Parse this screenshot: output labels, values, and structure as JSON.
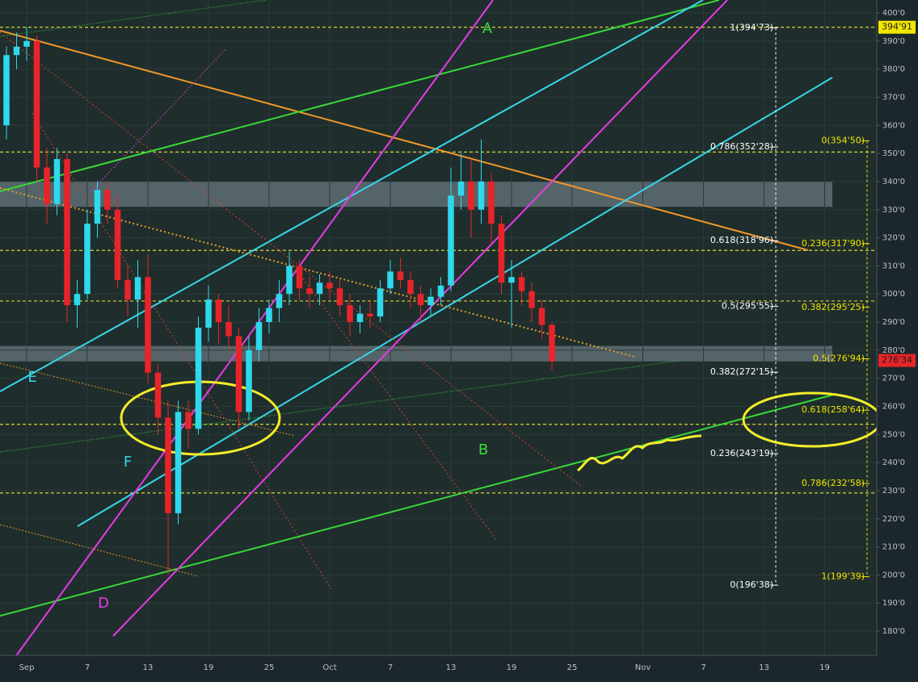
{
  "chart_data": {
    "type": "candlestick",
    "x": [
      -2,
      -1,
      0,
      1,
      2,
      3,
      4,
      5,
      6,
      7,
      8,
      9,
      10,
      11,
      12,
      13,
      14,
      15,
      16,
      17,
      18,
      19,
      20,
      21,
      22,
      23,
      24,
      25,
      26,
      27,
      28,
      29,
      30,
      31,
      32,
      33,
      34,
      35,
      36,
      37,
      38,
      39,
      40,
      41,
      42,
      43,
      44,
      45,
      46,
      47,
      48,
      49,
      50,
      51,
      52
    ],
    "open": [
      360,
      385,
      388,
      390,
      345,
      332,
      348,
      296,
      300,
      325,
      337,
      330,
      305,
      298,
      306,
      272,
      256,
      222,
      258,
      252,
      288,
      298,
      290,
      285,
      258,
      280,
      290,
      295,
      300,
      310,
      302,
      300,
      304,
      302,
      296,
      290,
      293,
      292,
      302,
      308,
      305,
      300,
      296,
      299,
      303,
      335,
      340,
      330,
      340,
      325,
      304,
      306,
      301,
      295,
      289
    ],
    "high": [
      388,
      393,
      395,
      392,
      352,
      352,
      350,
      305,
      330,
      340,
      340,
      335,
      310,
      312,
      314,
      275,
      262,
      262,
      262,
      292,
      303,
      300,
      296,
      288,
      285,
      295,
      298,
      305,
      315,
      312,
      306,
      307,
      308,
      305,
      300,
      296,
      298,
      305,
      312,
      313,
      308,
      303,
      302,
      306,
      345,
      350,
      348,
      355,
      343,
      328,
      312,
      308,
      304,
      298,
      290
    ],
    "low": [
      355,
      380,
      383,
      340,
      325,
      328,
      290,
      288,
      298,
      320,
      325,
      302,
      292,
      288,
      268,
      250,
      200,
      218,
      245,
      250,
      283,
      282,
      280,
      252,
      255,
      276,
      286,
      290,
      296,
      298,
      295,
      296,
      298,
      292,
      285,
      286,
      288,
      290,
      300,
      302,
      295,
      290,
      292,
      296,
      301,
      330,
      320,
      325,
      318,
      300,
      288,
      296,
      290,
      284,
      273
    ],
    "close": [
      385,
      388,
      390,
      345,
      332,
      348,
      296,
      300,
      325,
      337,
      330,
      305,
      298,
      306,
      272,
      256,
      222,
      258,
      252,
      288,
      298,
      290,
      285,
      258,
      280,
      290,
      295,
      300,
      310,
      302,
      300,
      304,
      302,
      296,
      290,
      293,
      292,
      302,
      308,
      305,
      300,
      296,
      299,
      303,
      335,
      340,
      330,
      340,
      325,
      304,
      306,
      301,
      295,
      289,
      276
    ],
    "up_color": "#2fd8ec",
    "down_color": "#e8242a",
    "xlim": [
      -2.64,
      84.16
    ],
    "ylim": [
      171.4,
      404.6
    ],
    "xticks": [
      {
        "value": 0,
        "label": "Sep"
      },
      {
        "value": 6,
        "label": "7"
      },
      {
        "value": 12,
        "label": "13"
      },
      {
        "value": 18,
        "label": "19"
      },
      {
        "value": 24,
        "label": "25"
      },
      {
        "value": 30,
        "label": "Oct"
      },
      {
        "value": 36,
        "label": "7"
      },
      {
        "value": 42,
        "label": "13"
      },
      {
        "value": 48,
        "label": "19"
      },
      {
        "value": 54,
        "label": "25"
      },
      {
        "value": 61,
        "label": "Nov"
      },
      {
        "value": 67,
        "label": "7"
      },
      {
        "value": 73,
        "label": "13"
      },
      {
        "value": 79,
        "label": "19"
      }
    ],
    "yticks": [
      {
        "value": 180,
        "label": "180'0"
      },
      {
        "value": 190,
        "label": "190'0"
      },
      {
        "value": 200,
        "label": "200'0"
      },
      {
        "value": 210,
        "label": "210'0"
      },
      {
        "value": 220,
        "label": "220'0"
      },
      {
        "value": 230,
        "label": "230'0"
      },
      {
        "value": 240,
        "label": "240'0"
      },
      {
        "value": 250,
        "label": "250'0"
      },
      {
        "value": 260,
        "label": "260'0"
      },
      {
        "value": 270,
        "label": "270'0"
      },
      {
        "value": 280,
        "label": "280'0"
      },
      {
        "value": 290,
        "label": "290'0"
      },
      {
        "value": 300,
        "label": "300'0"
      },
      {
        "value": 310,
        "label": "310'0"
      },
      {
        "value": 320,
        "label": "320'0"
      },
      {
        "value": 330,
        "label": "330'0"
      },
      {
        "value": 340,
        "label": "340'0"
      },
      {
        "value": 350,
        "label": "350'0"
      },
      {
        "value": 360,
        "label": "360'0"
      },
      {
        "value": 370,
        "label": "370'0"
      },
      {
        "value": 380,
        "label": "380'0"
      },
      {
        "value": 390,
        "label": "390'0"
      },
      {
        "value": 400,
        "label": "400'0"
      }
    ],
    "fib_left": [
      {
        "value": 394.73,
        "label": "1(394'73)"
      },
      {
        "value": 352.28,
        "label": "0.786(352'28)"
      },
      {
        "value": 318.96,
        "label": "0.618(318'96)"
      },
      {
        "value": 295.55,
        "label": "0.5(295'55)"
      },
      {
        "value": 272.15,
        "label": "0.382(272'15)"
      },
      {
        "value": 243.19,
        "label": "0.236(243'19)"
      },
      {
        "value": 196.38,
        "label": "0(196'38)"
      }
    ],
    "fib_right": [
      {
        "value": 354.5,
        "label": "0(354'50)"
      },
      {
        "value": 317.9,
        "label": "0.236(317'90)"
      },
      {
        "value": 295.25,
        "label": "0.382(295'25)"
      },
      {
        "value": 276.94,
        "label": "0.5(276'94)"
      },
      {
        "value": 258.64,
        "label": "0.618(258'64)"
      },
      {
        "value": 232.58,
        "label": "0.786(232'58)"
      },
      {
        "value": 199.39,
        "label": "1(199'39)"
      }
    ],
    "fib_left_color": "#ffffff",
    "fib_right_color": "#f2e600",
    "levels": [
      394.91,
      350.5,
      315.5,
      297.5,
      253.6,
      229.2
    ],
    "level_color": "#d8d23a",
    "zones": [
      [
        331,
        340
      ],
      [
        276,
        281.5
      ]
    ],
    "price_tags": [
      {
        "value": 394.91,
        "label": "394'91",
        "color": "#f2e600"
      },
      {
        "value": 276.34,
        "label": "276'34",
        "color": "#e8242a"
      }
    ],
    "annotations": [
      "A",
      "B",
      "D",
      "E",
      "F"
    ]
  }
}
